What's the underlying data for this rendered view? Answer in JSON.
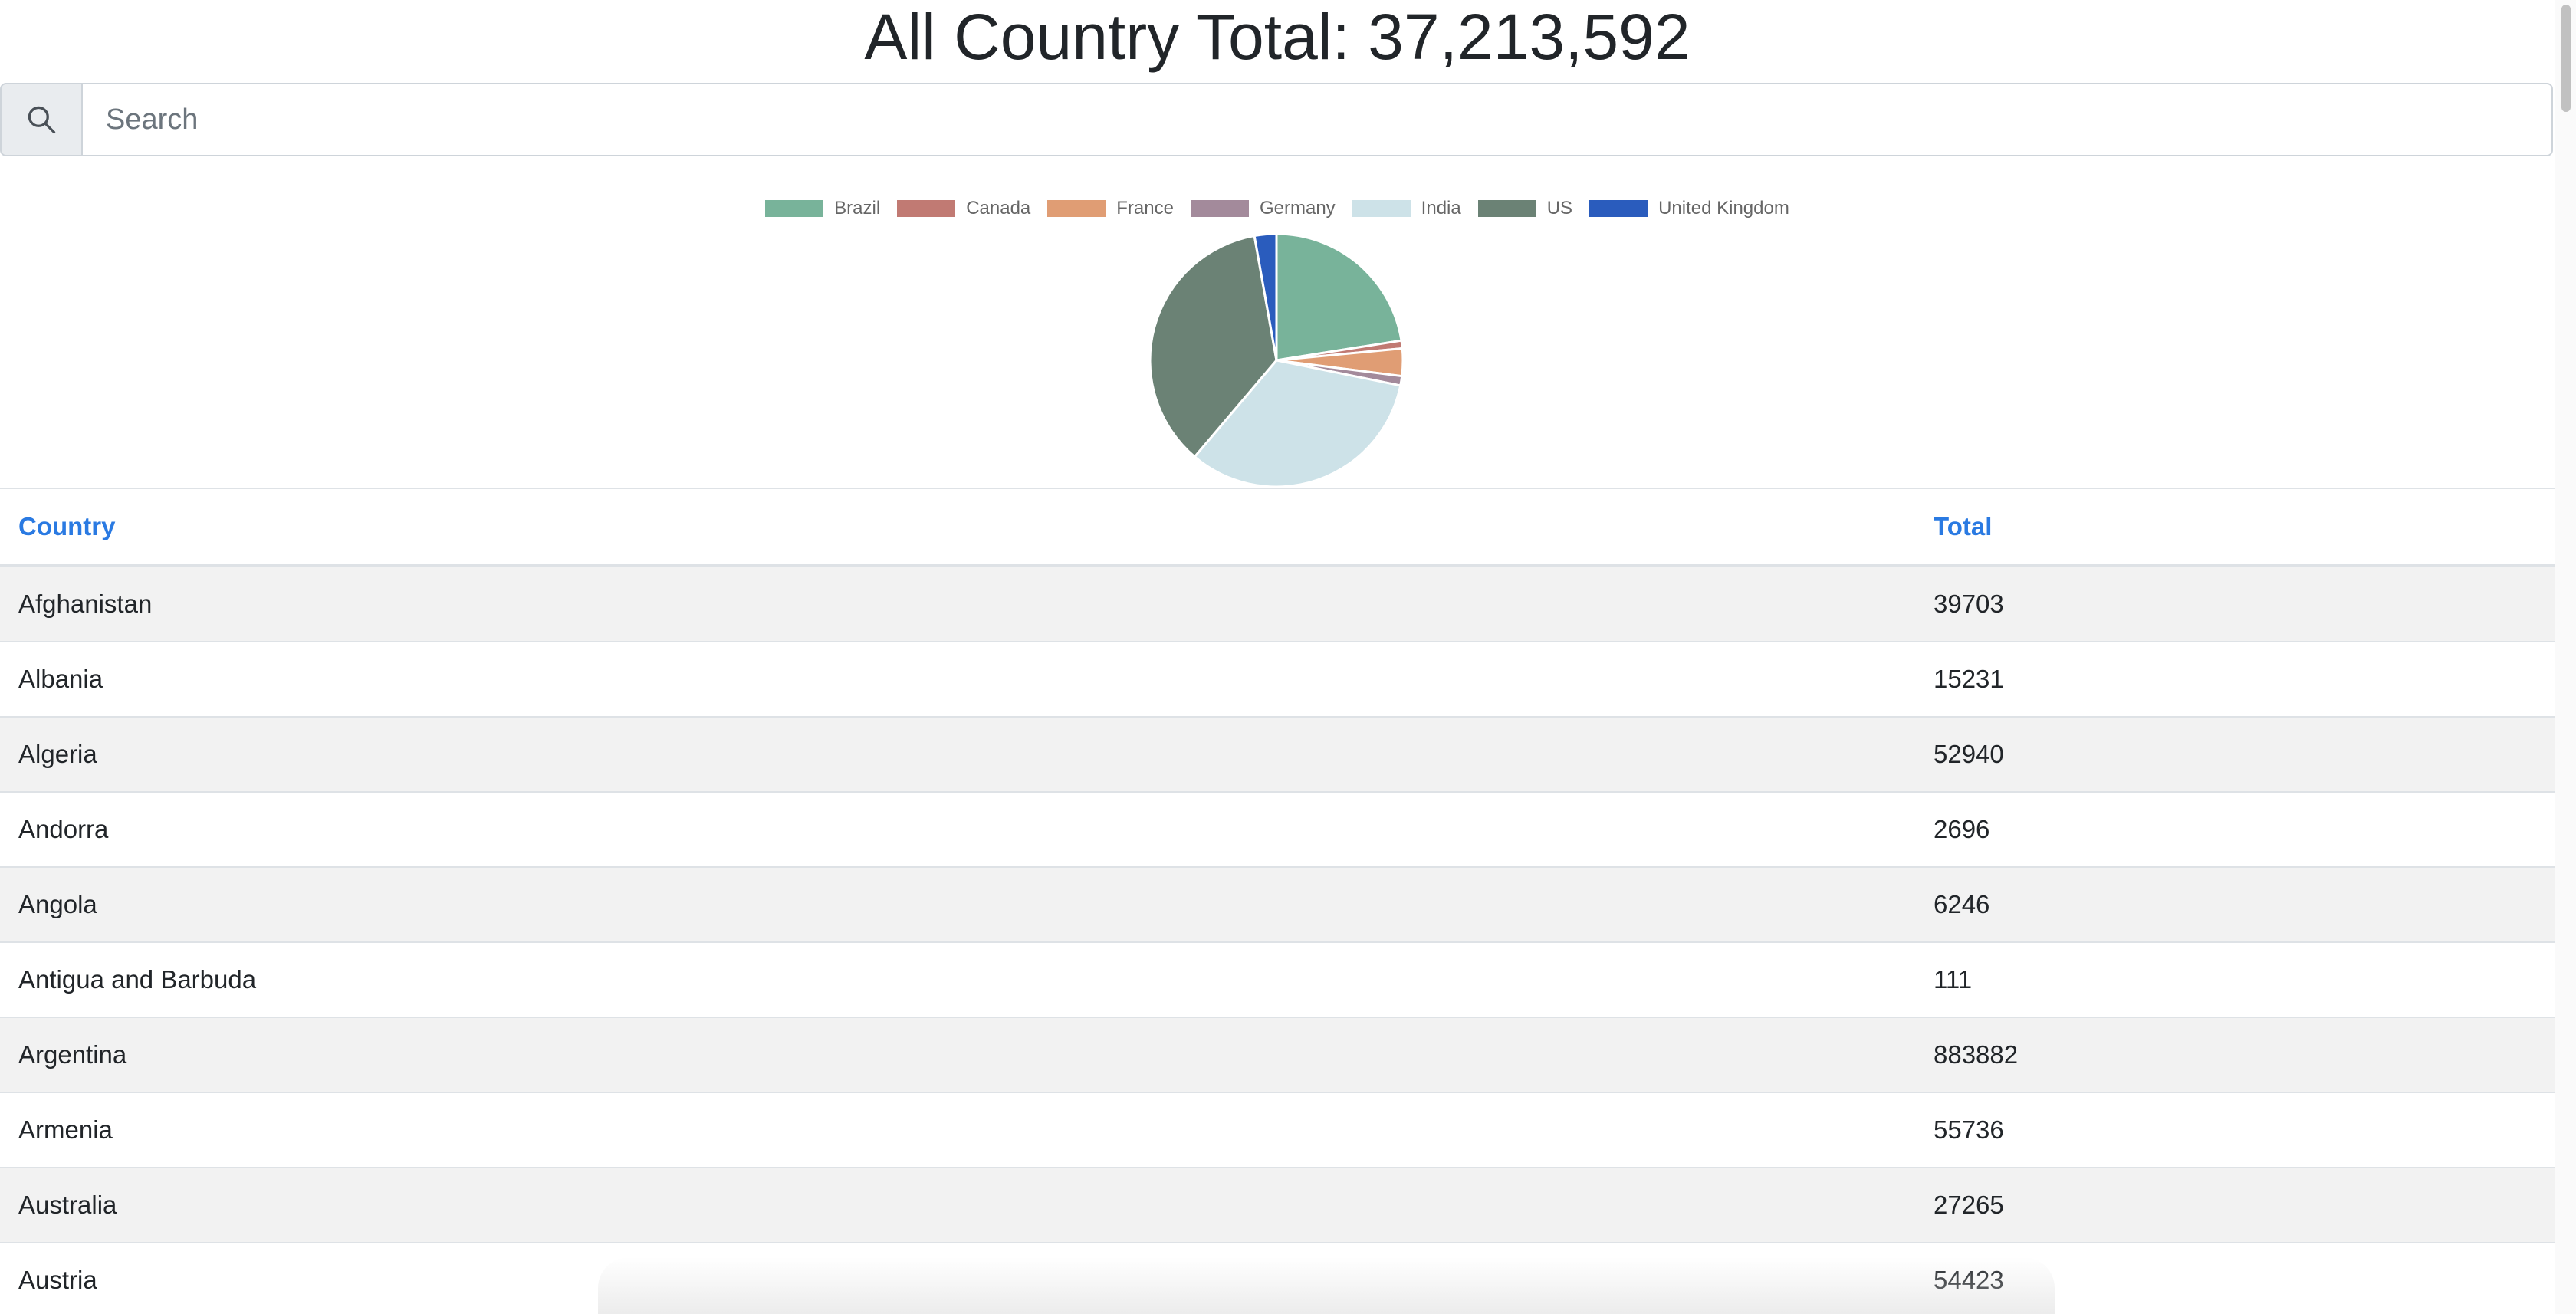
{
  "header": {
    "title": "All Country Total: 37,213,592"
  },
  "search": {
    "placeholder": "Search",
    "value": "",
    "icon": "search-icon"
  },
  "chart_data": {
    "type": "pie",
    "categories": [
      "Brazil",
      "Canada",
      "France",
      "Germany",
      "India",
      "US",
      "United Kingdom"
    ],
    "values": [
      22.5,
      1.0,
      3.5,
      1.2,
      33.0,
      36.0,
      2.8
    ],
    "colors": [
      "#78b39a",
      "#c17a73",
      "#e09d74",
      "#a38a9b",
      "#cde2e8",
      "#6b8275",
      "#2a5cbd"
    ],
    "legend_position": "top"
  },
  "table": {
    "headers": {
      "country": "Country",
      "total": "Total"
    },
    "rows": [
      {
        "country": "Afghanistan",
        "total": "39703"
      },
      {
        "country": "Albania",
        "total": "15231"
      },
      {
        "country": "Algeria",
        "total": "52940"
      },
      {
        "country": "Andorra",
        "total": "2696"
      },
      {
        "country": "Angola",
        "total": "6246"
      },
      {
        "country": "Antigua and Barbuda",
        "total": "111"
      },
      {
        "country": "Argentina",
        "total": "883882"
      },
      {
        "country": "Armenia",
        "total": "55736"
      },
      {
        "country": "Australia",
        "total": "27265"
      },
      {
        "country": "Austria",
        "total": "54423"
      }
    ]
  }
}
